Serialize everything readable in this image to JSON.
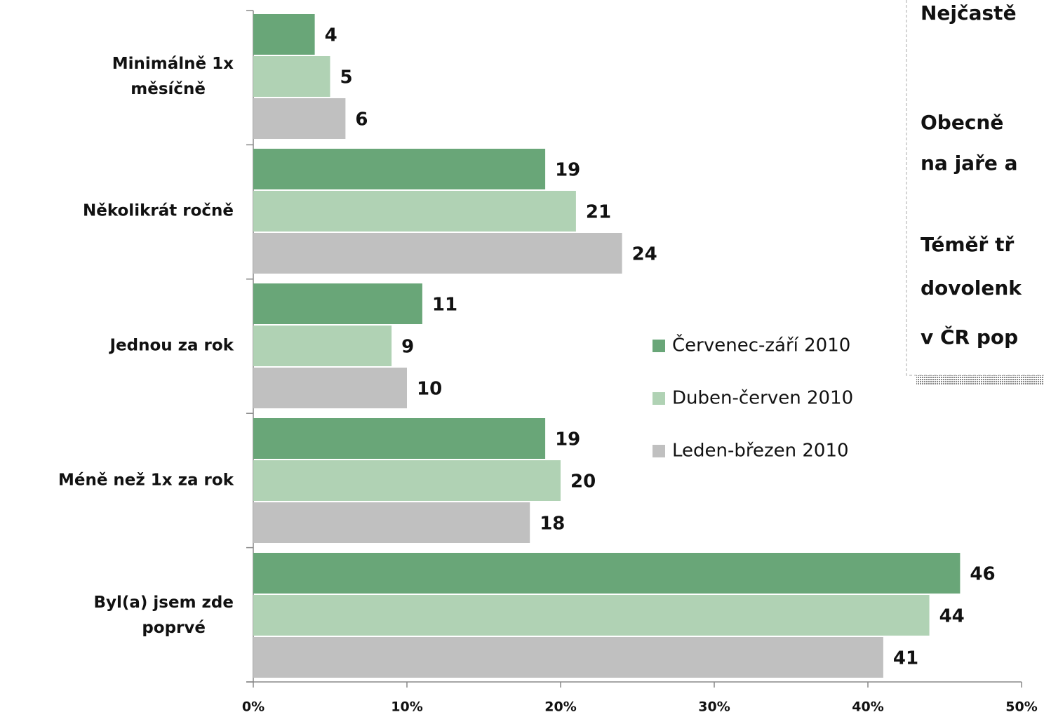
{
  "chart_data": {
    "type": "barh",
    "categories": [
      "Minimálně 1x\nměsíčně",
      "Několikrát ročně",
      "Jednou za rok",
      "Méně než 1x za rok",
      "Byl(a) jsem zde\npoprvé"
    ],
    "series": [
      {
        "name": "Červenec-září 2010",
        "color": "#69a678",
        "values": [
          4,
          19,
          11,
          19,
          46
        ]
      },
      {
        "name": "Duben-červen 2010",
        "color": "#b0d2b4",
        "values": [
          5,
          21,
          9,
          20,
          44
        ]
      },
      {
        "name": "Leden-březen 2010",
        "color": "#c0c0c0",
        "values": [
          6,
          24,
          10,
          18,
          41
        ]
      }
    ],
    "xlim": [
      0,
      50
    ],
    "xticks": [
      {
        "value": 0,
        "label": "0%"
      },
      {
        "value": 10,
        "label": "10%"
      },
      {
        "value": 20,
        "label": "20%"
      },
      {
        "value": 30,
        "label": "30%"
      },
      {
        "value": 40,
        "label": "40%"
      },
      {
        "value": 50,
        "label": "50%"
      }
    ],
    "annotations": [
      {
        "text": "Nejčastě",
        "color": "#a3154f"
      },
      {
        "text": "Obecně",
        "color": "#a3154f"
      },
      {
        "text": "na jaře a",
        "color": "#a3154f"
      },
      {
        "text": "Téměř tř",
        "color": "#a3154f"
      },
      {
        "text": "dovolenk",
        "color": "#222222"
      },
      {
        "text": "v ČR pop",
        "color": "#a3154f"
      }
    ]
  }
}
